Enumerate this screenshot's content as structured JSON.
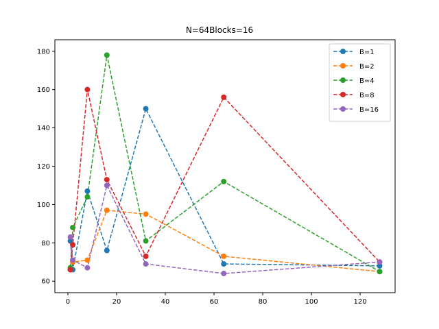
{
  "chart_data": {
    "type": "line",
    "title": "N=64Blocks=16",
    "xlabel": "",
    "ylabel": "",
    "xlim": [
      -5.35,
      134.35
    ],
    "ylim": [
      54,
      186
    ],
    "xticks": [
      0,
      20,
      40,
      60,
      80,
      100,
      120
    ],
    "yticks": [
      60,
      80,
      100,
      120,
      140,
      160,
      180
    ],
    "grid": false,
    "legend_position": "top-right",
    "line_style": "dashed",
    "marker": "circle",
    "series": [
      {
        "name": "B=1",
        "color": "#1f77b4",
        "x": [
          1,
          2,
          8,
          16,
          32,
          64,
          128
        ],
        "y": [
          81,
          66,
          107,
          76,
          150,
          69,
          68
        ]
      },
      {
        "name": "B=2",
        "color": "#ff7f0e",
        "x": [
          1,
          2,
          8,
          16,
          32,
          64,
          128
        ],
        "y": [
          66,
          70,
          71,
          97,
          95,
          73,
          65
        ]
      },
      {
        "name": "B=4",
        "color": "#2ca02c",
        "x": [
          1,
          2,
          8,
          16,
          32,
          64,
          128
        ],
        "y": [
          67,
          88,
          104,
          178,
          81,
          112,
          65
        ]
      },
      {
        "name": "B=8",
        "color": "#d62728",
        "x": [
          1,
          2,
          8,
          16,
          32,
          64,
          128
        ],
        "y": [
          66,
          79,
          160,
          113,
          73,
          156,
          70
        ]
      },
      {
        "name": "B=16",
        "color": "#9467bd",
        "x": [
          1,
          2,
          8,
          16,
          32,
          64,
          128
        ],
        "y": [
          83,
          71,
          67,
          110,
          69,
          64,
          70
        ]
      }
    ]
  }
}
